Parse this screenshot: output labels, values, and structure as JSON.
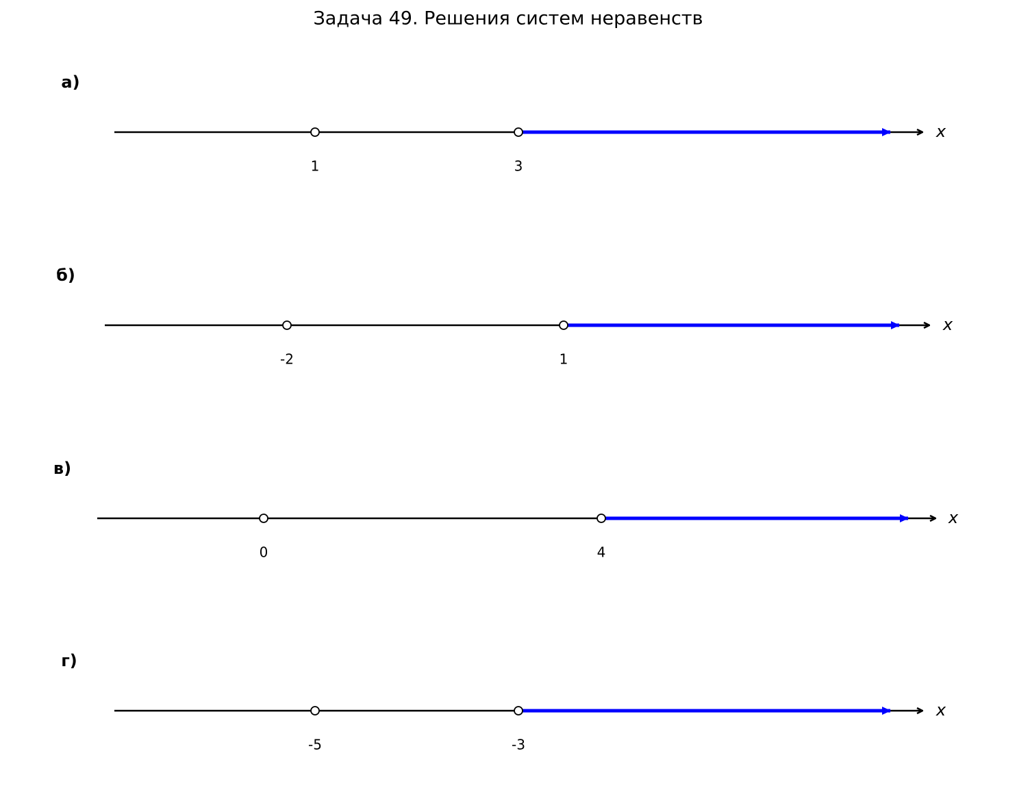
{
  "title": "Задача 49. Решения систем неравенств",
  "panels": [
    {
      "label": "а)",
      "axis": "x",
      "points": [
        1,
        3
      ]
    },
    {
      "label": "б)",
      "axis": "x",
      "points": [
        -2,
        1
      ]
    },
    {
      "label": "в)",
      "axis": "x",
      "points": [
        0,
        4
      ]
    },
    {
      "label": "г)",
      "axis": "x",
      "points": [
        -5,
        -3
      ]
    }
  ]
}
